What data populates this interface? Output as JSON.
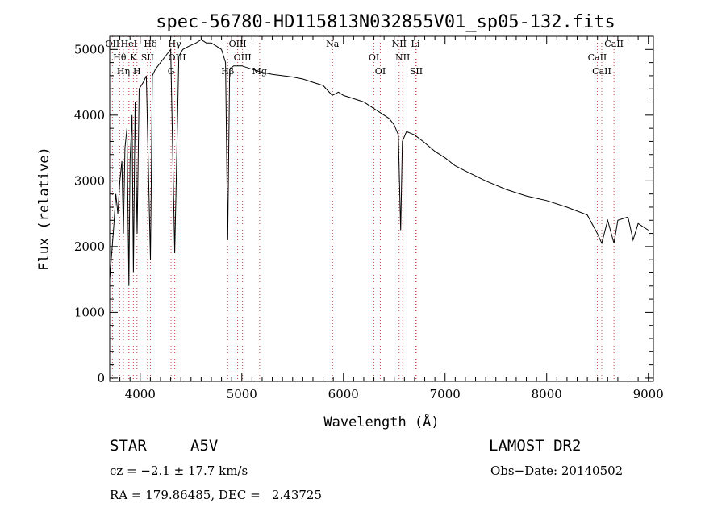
{
  "chart_data": {
    "type": "line",
    "title": "spec-56780-HD115813N032855V01_sp05-132.fits",
    "xlabel": "Wavelength (Å)",
    "ylabel": "Flux (relative)",
    "xlim": [
      3700,
      9050
    ],
    "ylim": [
      -50,
      5200
    ],
    "xticks": [
      4000,
      5000,
      6000,
      7000,
      8000,
      9000
    ],
    "yticks": [
      0,
      1000,
      2000,
      3000,
      4000,
      5000
    ],
    "series": [
      {
        "x": [
          3700,
          3720,
          3740,
          3760,
          3780,
          3800,
          3820,
          3835,
          3850,
          3870,
          3889,
          3900,
          3920,
          3933,
          3950,
          3970,
          3990,
          4030,
          4060,
          4101,
          4120,
          4150,
          4200,
          4250,
          4300,
          4340,
          4380,
          4420,
          4480,
          4550,
          4600,
          4650,
          4700,
          4750,
          4800,
          4840,
          4861,
          4880,
          4920,
          5000,
          5100,
          5200,
          5300,
          5400,
          5500,
          5600,
          5700,
          5800,
          5890,
          5950,
          6000,
          6100,
          6200,
          6300,
          6400,
          6450,
          6500,
          6540,
          6563,
          6580,
          6620,
          6700,
          6800,
          6900,
          7000,
          7100,
          7200,
          7400,
          7600,
          7800,
          8000,
          8200,
          8400,
          8498,
          8542,
          8600,
          8662,
          8700,
          8800,
          8850,
          8900,
          8950,
          9000
        ],
        "y": [
          1500,
          1900,
          2300,
          2800,
          2500,
          3000,
          3300,
          2200,
          3500,
          3800,
          1400,
          3300,
          4000,
          1600,
          4200,
          2200,
          4400,
          4500,
          4600,
          1800,
          4600,
          4700,
          4800,
          4900,
          5000,
          1900,
          4900,
          5000,
          5050,
          5100,
          5150,
          5100,
          5100,
          5050,
          5000,
          4800,
          2100,
          4700,
          4750,
          4750,
          4700,
          4650,
          4620,
          4600,
          4580,
          4550,
          4500,
          4450,
          4300,
          4350,
          4300,
          4250,
          4200,
          4100,
          4000,
          3950,
          3850,
          3700,
          2250,
          3600,
          3750,
          3700,
          3580,
          3450,
          3350,
          3230,
          3150,
          3000,
          2870,
          2770,
          2700,
          2600,
          2480,
          2200,
          2050,
          2400,
          2050,
          2400,
          2450,
          2100,
          2350,
          2300,
          2250
        ]
      }
    ],
    "lines": [
      {
        "name": "OII",
        "x": 3727,
        "color": "#d04040"
      },
      {
        "name": "Hθ",
        "x": 3798,
        "color": "#d04040"
      },
      {
        "name": "Hη",
        "x": 3835,
        "color": "#d04040"
      },
      {
        "name": "HeI",
        "x": 3889,
        "color": "#d04040"
      },
      {
        "name": "K",
        "x": 3933,
        "color": "#d04040"
      },
      {
        "name": "H",
        "x": 3968,
        "color": "#d04040"
      },
      {
        "name": "Hδ",
        "x": 4101,
        "color": "#d04040"
      },
      {
        "name": "SII",
        "x": 4072,
        "color": "#d04040"
      },
      {
        "name": "G",
        "x": 4304,
        "color": "#d04040"
      },
      {
        "name": "Hγ",
        "x": 4340,
        "color": "#d04040"
      },
      {
        "name": "OIII",
        "x": 4363,
        "color": "#d04040"
      },
      {
        "name": "Hβ",
        "x": 4861,
        "color": "#d04040"
      },
      {
        "name": "OIII",
        "x": 4959,
        "color": "#d04040"
      },
      {
        "name": "OIII",
        "x": 5007,
        "color": "#d04040"
      },
      {
        "name": "Mg",
        "x": 5175,
        "color": "#d04040"
      },
      {
        "name": "Na",
        "x": 5893,
        "color": "#d04040"
      },
      {
        "name": "OI",
        "x": 6300,
        "color": "#d04040"
      },
      {
        "name": "OI",
        "x": 6363,
        "color": "#d04040"
      },
      {
        "name": "NII",
        "x": 6548,
        "color": "#d04040"
      },
      {
        "name": "NII",
        "x": 6583,
        "color": "#d04040"
      },
      {
        "name": "SII",
        "x": 6716,
        "color": "#d04040"
      },
      {
        "name": "Li",
        "x": 6708,
        "color": "#d04040"
      },
      {
        "name": "CaII",
        "x": 8498,
        "color": "#d04040"
      },
      {
        "name": "CaII",
        "x": 8542,
        "color": "#d04040"
      },
      {
        "name": "CaII",
        "x": 8662,
        "color": "#d04040"
      }
    ],
    "grid": false,
    "line_color": "#000000"
  },
  "info": {
    "object_type": "STAR",
    "subclass": "A5V",
    "cz": "cz = −2.1 ± 17.7 km/s",
    "coords": "RA = 179.86485, DEC =   2.43725",
    "survey": "LAMOST DR2",
    "obs_date": "Obs−Date: 20140502"
  }
}
